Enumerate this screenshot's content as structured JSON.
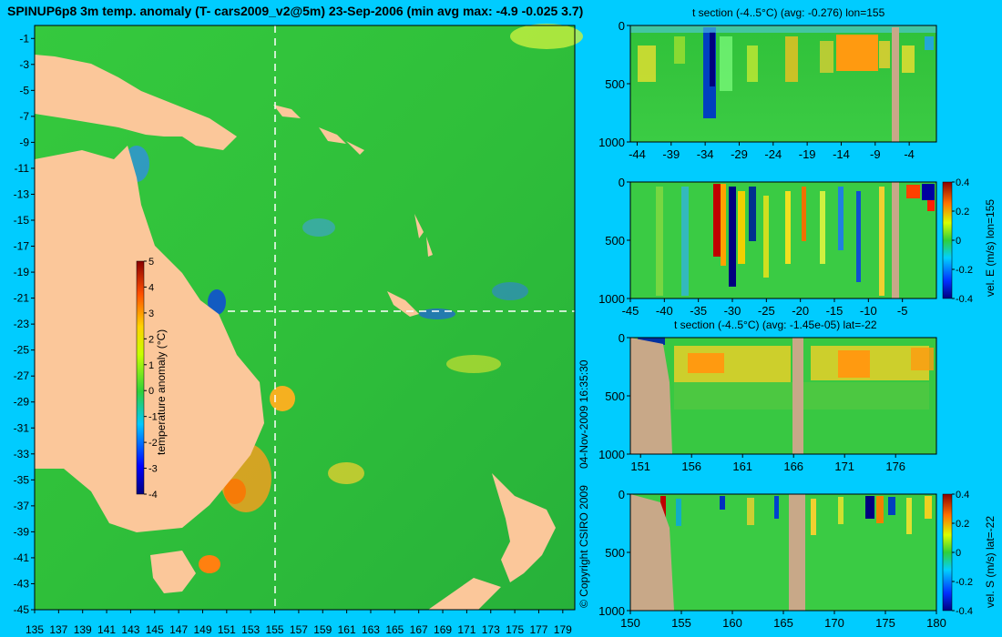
{
  "main_title": "SPINUP6p8 3m temp. anomaly (T- cars2009_v2@5m) 23-Sep-2006 (min avg max: -4.9 -0.025 3.7)",
  "credit": {
    "copyright": "© Copyright CSIRO 2009",
    "timestamp": "04-Nov-2009 16:35:30"
  },
  "colors": {
    "background": "#00ccff",
    "land": "#fbc79a",
    "section_land": "#c8a888",
    "ocean_mid": "#2fc23a"
  },
  "chart_data": [
    {
      "type": "heatmap",
      "name": "map",
      "title": "SPINUP6p8 3m temp. anomaly (T- cars2009_v2@5m) 23-Sep-2006 (min avg max: -4.9 -0.025 3.7)",
      "xlim": [
        135,
        180
      ],
      "ylim": [
        -45,
        0
      ],
      "xticks": [
        "135",
        "137",
        "139",
        "141",
        "143",
        "145",
        "147",
        "149",
        "151",
        "153",
        "155",
        "157",
        "159",
        "161",
        "163",
        "165",
        "167",
        "169",
        "171",
        "173",
        "175",
        "177",
        "179"
      ],
      "yticks": [
        "-1",
        "-3",
        "-5",
        "-7",
        "-9",
        "-11",
        "-13",
        "-15",
        "-17",
        "-19",
        "-21",
        "-23",
        "-25",
        "-27",
        "-29",
        "-31",
        "-33",
        "-35",
        "-37",
        "-39",
        "-41",
        "-43",
        "-45"
      ],
      "colorbar": {
        "label": "temperature anomaly (°C)",
        "ticks": [
          "5",
          "4",
          "3",
          "2",
          "1",
          "0",
          "-1",
          "-2",
          "-3",
          "-4"
        ],
        "range": [
          -4,
          5
        ]
      },
      "section_lines": {
        "lon": 155,
        "lat": -22
      },
      "stats": {
        "min": -4.9,
        "avg": -0.025,
        "max": 3.7
      }
    },
    {
      "type": "heatmap",
      "name": "t-section-lon",
      "title": "t section (-4..5°C) (avg: -0.276) lon=155",
      "xlim": [
        -45,
        0
      ],
      "ylim": [
        1000,
        0
      ],
      "xticks": [
        "-44",
        "-39",
        "-34",
        "-29",
        "-24",
        "-19",
        "-14",
        "-9",
        "-4"
      ],
      "yticks": [
        "0",
        "500",
        "1000"
      ],
      "avg": -0.276
    },
    {
      "type": "heatmap",
      "name": "vel-e-section",
      "title": "",
      "xlim": [
        -45,
        0
      ],
      "ylim": [
        1000,
        0
      ],
      "xticks": [
        "-45",
        "-40",
        "-35",
        "-30",
        "-25",
        "-20",
        "-15",
        "-10",
        "-5"
      ],
      "yticks": [
        "0",
        "500",
        "1000"
      ],
      "colorbar": {
        "label": "vel. E (m/s) lon=155",
        "ticks": [
          "0.4",
          "0.2",
          "0",
          "-0.2",
          "-0.4"
        ],
        "range": [
          -0.4,
          0.4
        ]
      }
    },
    {
      "type": "heatmap",
      "name": "t-section-lat",
      "title": "t section (-4..5°C) (avg: -1.45e-05) lat=-22",
      "xlim": [
        150,
        180
      ],
      "ylim": [
        1000,
        0
      ],
      "xticks": [
        "151",
        "156",
        "161",
        "166",
        "171",
        "176"
      ],
      "yticks": [
        "0",
        "500",
        "1000"
      ],
      "avg": -1.45e-05
    },
    {
      "type": "heatmap",
      "name": "vel-s-section",
      "title": "",
      "xlim": [
        150,
        180
      ],
      "ylim": [
        1000,
        0
      ],
      "xticks": [
        "150",
        "155",
        "160",
        "165",
        "170",
        "175",
        "180"
      ],
      "yticks": [
        "0",
        "500",
        "1000"
      ],
      "colorbar": {
        "label": "vel. S (m/s) lat=-22",
        "ticks": [
          "0.4",
          "0.2",
          "0",
          "-0.2",
          "-0.4"
        ],
        "range": [
          -0.4,
          0.4
        ]
      }
    }
  ]
}
